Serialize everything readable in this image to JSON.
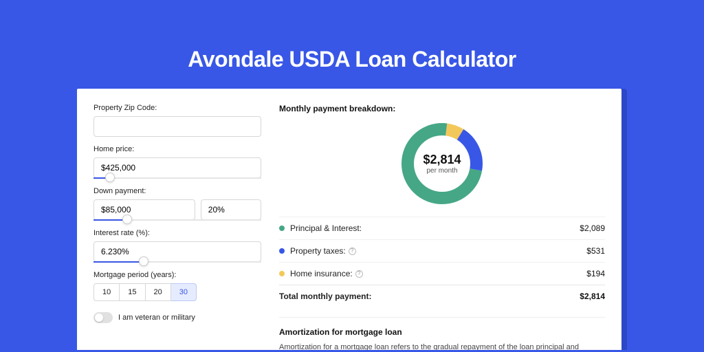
{
  "page": {
    "title": "Avondale USDA Loan Calculator",
    "background_color": "#3857e6",
    "panel_shadow_color": "#2c48c7",
    "panel_background": "#ffffff"
  },
  "form": {
    "zip": {
      "label": "Property Zip Code:",
      "value": ""
    },
    "home_price": {
      "label": "Home price:",
      "value": "$425,000",
      "slider_percent": 10
    },
    "down_payment": {
      "label": "Down payment:",
      "amount": "$85,000",
      "percent": "20%",
      "slider_percent": 20
    },
    "interest_rate": {
      "label": "Interest rate (%):",
      "value": "6.230%",
      "slider_percent": 30
    },
    "mortgage_period": {
      "label": "Mortgage period (years):",
      "options": [
        "10",
        "15",
        "20",
        "30"
      ],
      "selected": "30"
    },
    "veteran": {
      "label": "I am veteran or military",
      "checked": false
    }
  },
  "breakdown": {
    "title": "Monthly payment breakdown:",
    "donut": {
      "center_amount": "$2,814",
      "center_sub": "per month",
      "radius": 65,
      "ring_width": 18,
      "slices": [
        {
          "name": "principal_interest",
          "fraction": 0.742,
          "color": "#45a786"
        },
        {
          "name": "property_taxes",
          "fraction": 0.189,
          "color": "#3857e6"
        },
        {
          "name": "home_insurance",
          "fraction": 0.069,
          "color": "#f3c85b"
        }
      ]
    },
    "legend": [
      {
        "label": "Principal & Interest:",
        "amount": "$2,089",
        "color": "#45a786",
        "info": false
      },
      {
        "label": "Property taxes:",
        "amount": "$531",
        "color": "#3857e6",
        "info": true
      },
      {
        "label": "Home insurance:",
        "amount": "$194",
        "color": "#f3c85b",
        "info": true
      }
    ],
    "total": {
      "label": "Total monthly payment:",
      "amount": "$2,814"
    }
  },
  "amortization": {
    "title": "Amortization for mortgage loan",
    "text": "Amortization for a mortgage loan refers to the gradual repayment of the loan principal and interest over a specified"
  }
}
